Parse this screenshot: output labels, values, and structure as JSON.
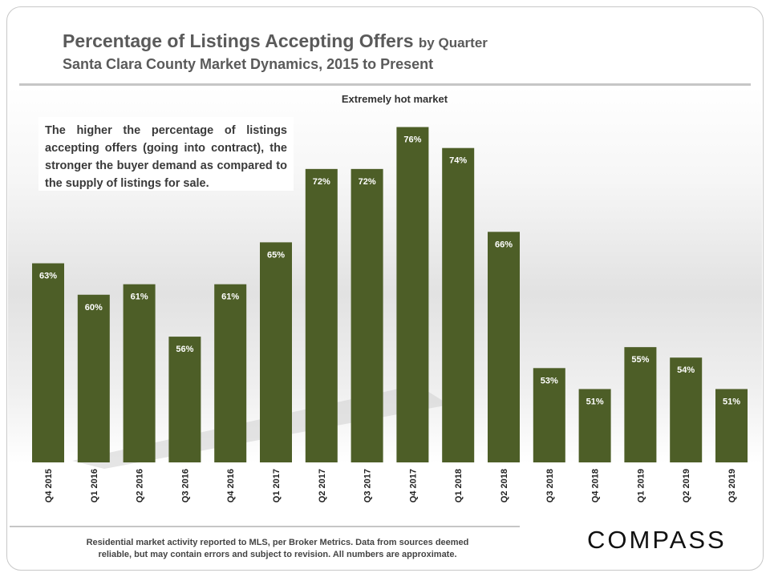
{
  "header": {
    "title_main": "Percentage of Listings Accepting Offers",
    "title_suffix": "by Quarter",
    "subtitle": "Santa Clara County Market Dynamics, 2015 to Present"
  },
  "note": "The higher the percentage of listings accepting offers (going into contract), the stronger the buyer demand as compared to the supply of listings for sale.",
  "footer": {
    "line1": "Residential market activity reported to MLS, per Broker Metrics. Data from sources deemed",
    "line2": "reliable, but may contain errors and subject to revision. All numbers are approximate.",
    "logo": "COMPASS"
  },
  "colors": {
    "bar": "#4d5e27",
    "label": "#ffffff",
    "axis_text": "#222222"
  },
  "chart_data": {
    "type": "bar",
    "title": "Percentage of Listings Accepting Offers by Quarter",
    "annotation": "Extremely hot market",
    "categories": [
      "Q4 2015",
      "Q1 2016",
      "Q2 2016",
      "Q3 2016",
      "Q4 2016",
      "Q1 2017",
      "Q2 2017",
      "Q3 2017",
      "Q4 2017",
      "Q1 2018",
      "Q2 2018",
      "Q3 2018",
      "Q4 2018",
      "Q1 2019",
      "Q2 2019",
      "Q3 2019"
    ],
    "values": [
      63,
      60,
      61,
      56,
      61,
      65,
      72,
      72,
      76,
      74,
      66,
      53,
      51,
      55,
      54,
      51
    ],
    "value_suffix": "%",
    "xlabel": "",
    "ylabel": "",
    "ylim": [
      44,
      76.5
    ],
    "grid": false
  }
}
